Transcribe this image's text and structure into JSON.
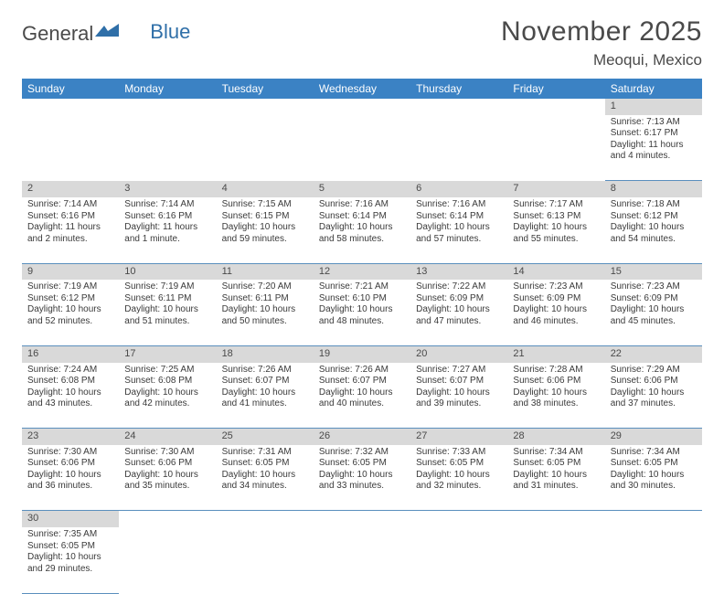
{
  "logo": {
    "text1": "General",
    "text2": "Blue"
  },
  "title": "November 2025",
  "location": "Meoqui, Mexico",
  "colors": {
    "header_bg": "#3b82c4",
    "header_text": "#ffffff",
    "daynum_bg": "#d9d9d9",
    "cell_border": "#5a8fbd",
    "body_text": "#3a3a3a",
    "logo_blue": "#2f6fa8"
  },
  "dayHeaders": [
    "Sunday",
    "Monday",
    "Tuesday",
    "Wednesday",
    "Thursday",
    "Friday",
    "Saturday"
  ],
  "weeks": [
    [
      null,
      null,
      null,
      null,
      null,
      null,
      {
        "n": "1",
        "sr": "Sunrise: 7:13 AM",
        "ss": "Sunset: 6:17 PM",
        "dl1": "Daylight: 11 hours",
        "dl2": "and 4 minutes."
      }
    ],
    [
      {
        "n": "2",
        "sr": "Sunrise: 7:14 AM",
        "ss": "Sunset: 6:16 PM",
        "dl1": "Daylight: 11 hours",
        "dl2": "and 2 minutes."
      },
      {
        "n": "3",
        "sr": "Sunrise: 7:14 AM",
        "ss": "Sunset: 6:16 PM",
        "dl1": "Daylight: 11 hours",
        "dl2": "and 1 minute."
      },
      {
        "n": "4",
        "sr": "Sunrise: 7:15 AM",
        "ss": "Sunset: 6:15 PM",
        "dl1": "Daylight: 10 hours",
        "dl2": "and 59 minutes."
      },
      {
        "n": "5",
        "sr": "Sunrise: 7:16 AM",
        "ss": "Sunset: 6:14 PM",
        "dl1": "Daylight: 10 hours",
        "dl2": "and 58 minutes."
      },
      {
        "n": "6",
        "sr": "Sunrise: 7:16 AM",
        "ss": "Sunset: 6:14 PM",
        "dl1": "Daylight: 10 hours",
        "dl2": "and 57 minutes."
      },
      {
        "n": "7",
        "sr": "Sunrise: 7:17 AM",
        "ss": "Sunset: 6:13 PM",
        "dl1": "Daylight: 10 hours",
        "dl2": "and 55 minutes."
      },
      {
        "n": "8",
        "sr": "Sunrise: 7:18 AM",
        "ss": "Sunset: 6:12 PM",
        "dl1": "Daylight: 10 hours",
        "dl2": "and 54 minutes."
      }
    ],
    [
      {
        "n": "9",
        "sr": "Sunrise: 7:19 AM",
        "ss": "Sunset: 6:12 PM",
        "dl1": "Daylight: 10 hours",
        "dl2": "and 52 minutes."
      },
      {
        "n": "10",
        "sr": "Sunrise: 7:19 AM",
        "ss": "Sunset: 6:11 PM",
        "dl1": "Daylight: 10 hours",
        "dl2": "and 51 minutes."
      },
      {
        "n": "11",
        "sr": "Sunrise: 7:20 AM",
        "ss": "Sunset: 6:11 PM",
        "dl1": "Daylight: 10 hours",
        "dl2": "and 50 minutes."
      },
      {
        "n": "12",
        "sr": "Sunrise: 7:21 AM",
        "ss": "Sunset: 6:10 PM",
        "dl1": "Daylight: 10 hours",
        "dl2": "and 48 minutes."
      },
      {
        "n": "13",
        "sr": "Sunrise: 7:22 AM",
        "ss": "Sunset: 6:09 PM",
        "dl1": "Daylight: 10 hours",
        "dl2": "and 47 minutes."
      },
      {
        "n": "14",
        "sr": "Sunrise: 7:23 AM",
        "ss": "Sunset: 6:09 PM",
        "dl1": "Daylight: 10 hours",
        "dl2": "and 46 minutes."
      },
      {
        "n": "15",
        "sr": "Sunrise: 7:23 AM",
        "ss": "Sunset: 6:09 PM",
        "dl1": "Daylight: 10 hours",
        "dl2": "and 45 minutes."
      }
    ],
    [
      {
        "n": "16",
        "sr": "Sunrise: 7:24 AM",
        "ss": "Sunset: 6:08 PM",
        "dl1": "Daylight: 10 hours",
        "dl2": "and 43 minutes."
      },
      {
        "n": "17",
        "sr": "Sunrise: 7:25 AM",
        "ss": "Sunset: 6:08 PM",
        "dl1": "Daylight: 10 hours",
        "dl2": "and 42 minutes."
      },
      {
        "n": "18",
        "sr": "Sunrise: 7:26 AM",
        "ss": "Sunset: 6:07 PM",
        "dl1": "Daylight: 10 hours",
        "dl2": "and 41 minutes."
      },
      {
        "n": "19",
        "sr": "Sunrise: 7:26 AM",
        "ss": "Sunset: 6:07 PM",
        "dl1": "Daylight: 10 hours",
        "dl2": "and 40 minutes."
      },
      {
        "n": "20",
        "sr": "Sunrise: 7:27 AM",
        "ss": "Sunset: 6:07 PM",
        "dl1": "Daylight: 10 hours",
        "dl2": "and 39 minutes."
      },
      {
        "n": "21",
        "sr": "Sunrise: 7:28 AM",
        "ss": "Sunset: 6:06 PM",
        "dl1": "Daylight: 10 hours",
        "dl2": "and 38 minutes."
      },
      {
        "n": "22",
        "sr": "Sunrise: 7:29 AM",
        "ss": "Sunset: 6:06 PM",
        "dl1": "Daylight: 10 hours",
        "dl2": "and 37 minutes."
      }
    ],
    [
      {
        "n": "23",
        "sr": "Sunrise: 7:30 AM",
        "ss": "Sunset: 6:06 PM",
        "dl1": "Daylight: 10 hours",
        "dl2": "and 36 minutes."
      },
      {
        "n": "24",
        "sr": "Sunrise: 7:30 AM",
        "ss": "Sunset: 6:06 PM",
        "dl1": "Daylight: 10 hours",
        "dl2": "and 35 minutes."
      },
      {
        "n": "25",
        "sr": "Sunrise: 7:31 AM",
        "ss": "Sunset: 6:05 PM",
        "dl1": "Daylight: 10 hours",
        "dl2": "and 34 minutes."
      },
      {
        "n": "26",
        "sr": "Sunrise: 7:32 AM",
        "ss": "Sunset: 6:05 PM",
        "dl1": "Daylight: 10 hours",
        "dl2": "and 33 minutes."
      },
      {
        "n": "27",
        "sr": "Sunrise: 7:33 AM",
        "ss": "Sunset: 6:05 PM",
        "dl1": "Daylight: 10 hours",
        "dl2": "and 32 minutes."
      },
      {
        "n": "28",
        "sr": "Sunrise: 7:34 AM",
        "ss": "Sunset: 6:05 PM",
        "dl1": "Daylight: 10 hours",
        "dl2": "and 31 minutes."
      },
      {
        "n": "29",
        "sr": "Sunrise: 7:34 AM",
        "ss": "Sunset: 6:05 PM",
        "dl1": "Daylight: 10 hours",
        "dl2": "and 30 minutes."
      }
    ],
    [
      {
        "n": "30",
        "sr": "Sunrise: 7:35 AM",
        "ss": "Sunset: 6:05 PM",
        "dl1": "Daylight: 10 hours",
        "dl2": "and 29 minutes."
      },
      null,
      null,
      null,
      null,
      null,
      null
    ]
  ]
}
